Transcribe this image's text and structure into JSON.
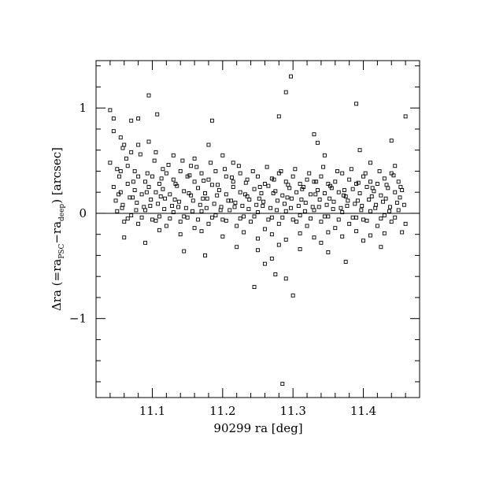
{
  "chart_data": {
    "type": "scatter",
    "title": "",
    "xlabel": "90299 ra [deg]",
    "ylabel_parts": {
      "lead": "Δra  (=ra",
      "sub1": "PSC",
      "mid": "−ra",
      "sub2": "deep",
      ") [arcsec]": ") [arcsec]"
    },
    "ylabel_tail": ")  [arcsec]",
    "xlim": [
      11.02,
      11.48
    ],
    "ylim": [
      -1.75,
      1.45
    ],
    "x_ticks": [
      11.1,
      11.2,
      11.3,
      11.4
    ],
    "x_tick_labels": [
      "11.1",
      "11.2",
      "11.3",
      "11.4"
    ],
    "y_ticks": [
      -1,
      0,
      1
    ],
    "y_tick_labels": [
      "−1",
      "0",
      "1"
    ],
    "reference_line_y": 0,
    "marker": "open-square",
    "grid": false,
    "series_note_count": 600,
    "points": [
      [
        11.06,
        -0.23
      ],
      [
        11.095,
        1.12
      ],
      [
        11.107,
        0.94
      ],
      [
        11.04,
        0.98
      ],
      [
        11.045,
        0.9
      ],
      [
        11.07,
        0.88
      ],
      [
        11.08,
        0.9
      ],
      [
        11.185,
        0.88
      ],
      [
        11.28,
        0.92
      ],
      [
        11.29,
        1.15
      ],
      [
        11.297,
        1.3
      ],
      [
        11.39,
        1.04
      ],
      [
        11.46,
        0.92
      ],
      [
        11.045,
        0.78
      ],
      [
        11.055,
        0.72
      ],
      [
        11.06,
        0.65
      ],
      [
        11.058,
        0.62
      ],
      [
        11.08,
        0.65
      ],
      [
        11.07,
        0.58
      ],
      [
        11.095,
        0.68
      ],
      [
        11.105,
        0.58
      ],
      [
        11.13,
        0.55
      ],
      [
        11.16,
        0.52
      ],
      [
        11.18,
        0.65
      ],
      [
        11.2,
        0.55
      ],
      [
        11.215,
        0.48
      ],
      [
        11.33,
        0.75
      ],
      [
        11.335,
        0.67
      ],
      [
        11.345,
        0.55
      ],
      [
        11.395,
        0.6
      ],
      [
        11.41,
        0.48
      ],
      [
        11.44,
        0.69
      ],
      [
        11.445,
        0.45
      ],
      [
        11.285,
        -1.62
      ],
      [
        11.245,
        -0.7
      ],
      [
        11.3,
        -0.78
      ],
      [
        11.29,
        -0.62
      ],
      [
        11.26,
        -0.48
      ],
      [
        11.275,
        -0.58
      ],
      [
        11.35,
        -0.37
      ],
      [
        11.375,
        -0.46
      ],
      [
        11.27,
        -0.43
      ],
      [
        11.09,
        -0.28
      ],
      [
        11.145,
        -0.36
      ],
      [
        11.175,
        -0.4
      ],
      [
        11.04,
        0.48
      ],
      [
        11.05,
        0.42
      ],
      [
        11.055,
        0.4
      ],
      [
        11.065,
        0.45
      ],
      [
        11.075,
        0.4
      ],
      [
        11.08,
        0.35
      ],
      [
        11.09,
        0.3
      ],
      [
        11.1,
        0.35
      ],
      [
        11.11,
        0.28
      ],
      [
        11.115,
        0.42
      ],
      [
        11.12,
        0.38
      ],
      [
        11.13,
        0.32
      ],
      [
        11.14,
        0.4
      ],
      [
        11.15,
        0.35
      ],
      [
        11.155,
        0.45
      ],
      [
        11.16,
        0.3
      ],
      [
        11.17,
        0.38
      ],
      [
        11.18,
        0.32
      ],
      [
        11.19,
        0.4
      ],
      [
        11.205,
        0.35
      ],
      [
        11.215,
        0.3
      ],
      [
        11.225,
        0.38
      ],
      [
        11.235,
        0.32
      ],
      [
        11.25,
        0.35
      ],
      [
        11.26,
        0.28
      ],
      [
        11.27,
        0.33
      ],
      [
        11.28,
        0.38
      ],
      [
        11.29,
        0.3
      ],
      [
        11.3,
        0.35
      ],
      [
        11.31,
        0.28
      ],
      [
        11.32,
        0.32
      ],
      [
        11.33,
        0.3
      ],
      [
        11.34,
        0.35
      ],
      [
        11.35,
        0.28
      ],
      [
        11.36,
        0.3
      ],
      [
        11.37,
        0.38
      ],
      [
        11.38,
        0.32
      ],
      [
        11.39,
        0.28
      ],
      [
        11.4,
        0.35
      ],
      [
        11.41,
        0.3
      ],
      [
        11.42,
        0.28
      ],
      [
        11.43,
        0.33
      ],
      [
        11.44,
        0.38
      ],
      [
        11.45,
        0.3
      ],
      [
        11.045,
        0.25
      ],
      [
        11.055,
        0.2
      ],
      [
        11.065,
        0.28
      ],
      [
        11.075,
        0.22
      ],
      [
        11.085,
        0.18
      ],
      [
        11.095,
        0.25
      ],
      [
        11.105,
        0.2
      ],
      [
        11.115,
        0.23
      ],
      [
        11.125,
        0.18
      ],
      [
        11.135,
        0.26
      ],
      [
        11.145,
        0.21
      ],
      [
        11.155,
        0.17
      ],
      [
        11.165,
        0.24
      ],
      [
        11.175,
        0.19
      ],
      [
        11.185,
        0.27
      ],
      [
        11.195,
        0.22
      ],
      [
        11.205,
        0.18
      ],
      [
        11.215,
        0.25
      ],
      [
        11.225,
        0.2
      ],
      [
        11.235,
        0.16
      ],
      [
        11.245,
        0.23
      ],
      [
        11.255,
        0.19
      ],
      [
        11.265,
        0.26
      ],
      [
        11.275,
        0.21
      ],
      [
        11.285,
        0.17
      ],
      [
        11.295,
        0.24
      ],
      [
        11.305,
        0.2
      ],
      [
        11.315,
        0.25
      ],
      [
        11.325,
        0.18
      ],
      [
        11.335,
        0.22
      ],
      [
        11.345,
        0.19
      ],
      [
        11.355,
        0.24
      ],
      [
        11.365,
        0.2
      ],
      [
        11.375,
        0.16
      ],
      [
        11.385,
        0.23
      ],
      [
        11.395,
        0.19
      ],
      [
        11.405,
        0.25
      ],
      [
        11.415,
        0.21
      ],
      [
        11.425,
        0.17
      ],
      [
        11.435,
        0.24
      ],
      [
        11.445,
        0.2
      ],
      [
        11.455,
        0.22
      ],
      [
        11.048,
        0.12
      ],
      [
        11.058,
        0.08
      ],
      [
        11.068,
        0.15
      ],
      [
        11.078,
        0.1
      ],
      [
        11.088,
        0.06
      ],
      [
        11.098,
        0.13
      ],
      [
        11.108,
        0.09
      ],
      [
        11.118,
        0.14
      ],
      [
        11.128,
        0.07
      ],
      [
        11.138,
        0.11
      ],
      [
        11.148,
        0.05
      ],
      [
        11.158,
        0.12
      ],
      [
        11.168,
        0.08
      ],
      [
        11.178,
        0.14
      ],
      [
        11.188,
        0.09
      ],
      [
        11.198,
        0.06
      ],
      [
        11.208,
        0.12
      ],
      [
        11.218,
        0.1
      ],
      [
        11.228,
        0.07
      ],
      [
        11.238,
        0.13
      ],
      [
        11.248,
        0.08
      ],
      [
        11.258,
        0.11
      ],
      [
        11.268,
        0.05
      ],
      [
        11.278,
        0.12
      ],
      [
        11.288,
        0.09
      ],
      [
        11.298,
        0.14
      ],
      [
        11.308,
        0.07
      ],
      [
        11.318,
        0.1
      ],
      [
        11.328,
        0.06
      ],
      [
        11.338,
        0.13
      ],
      [
        11.348,
        0.08
      ],
      [
        11.358,
        0.11
      ],
      [
        11.368,
        0.05
      ],
      [
        11.378,
        0.12
      ],
      [
        11.388,
        0.09
      ],
      [
        11.398,
        0.07
      ],
      [
        11.408,
        0.13
      ],
      [
        11.418,
        0.08
      ],
      [
        11.428,
        0.11
      ],
      [
        11.438,
        0.06
      ],
      [
        11.448,
        0.1
      ],
      [
        11.458,
        0.08
      ],
      [
        11.05,
        0.02
      ],
      [
        11.07,
        -0.02
      ],
      [
        11.09,
        0.03
      ],
      [
        11.11,
        -0.03
      ],
      [
        11.13,
        0.01
      ],
      [
        11.15,
        -0.04
      ],
      [
        11.17,
        0.02
      ],
      [
        11.19,
        -0.02
      ],
      [
        11.21,
        0.03
      ],
      [
        11.23,
        -0.03
      ],
      [
        11.25,
        0.01
      ],
      [
        11.27,
        -0.04
      ],
      [
        11.29,
        0.02
      ],
      [
        11.31,
        -0.02
      ],
      [
        11.33,
        0.03
      ],
      [
        11.35,
        -0.03
      ],
      [
        11.37,
        0.01
      ],
      [
        11.39,
        -0.04
      ],
      [
        11.41,
        0.02
      ],
      [
        11.43,
        -0.02
      ],
      [
        11.45,
        0.03
      ],
      [
        11.06,
        -0.08
      ],
      [
        11.08,
        -0.1
      ],
      [
        11.1,
        -0.06
      ],
      [
        11.12,
        -0.12
      ],
      [
        11.14,
        -0.08
      ],
      [
        11.16,
        -0.14
      ],
      [
        11.18,
        -0.1
      ],
      [
        11.2,
        -0.06
      ],
      [
        11.22,
        -0.12
      ],
      [
        11.24,
        -0.08
      ],
      [
        11.26,
        -0.15
      ],
      [
        11.28,
        -0.1
      ],
      [
        11.3,
        -0.06
      ],
      [
        11.32,
        -0.12
      ],
      [
        11.34,
        -0.08
      ],
      [
        11.36,
        -0.14
      ],
      [
        11.38,
        -0.1
      ],
      [
        11.4,
        -0.06
      ],
      [
        11.42,
        -0.12
      ],
      [
        11.44,
        -0.08
      ],
      [
        11.46,
        -0.1
      ],
      [
        11.11,
        -0.16
      ],
      [
        11.14,
        -0.2
      ],
      [
        11.17,
        -0.17
      ],
      [
        11.2,
        -0.22
      ],
      [
        11.23,
        -0.18
      ],
      [
        11.25,
        -0.24
      ],
      [
        11.27,
        -0.2
      ],
      [
        11.29,
        -0.25
      ],
      [
        11.31,
        -0.19
      ],
      [
        11.33,
        -0.23
      ],
      [
        11.35,
        -0.18
      ],
      [
        11.37,
        -0.22
      ],
      [
        11.39,
        -0.17
      ],
      [
        11.41,
        -0.21
      ],
      [
        11.43,
        -0.19
      ],
      [
        11.455,
        -0.18
      ],
      [
        11.22,
        -0.32
      ],
      [
        11.25,
        -0.35
      ],
      [
        11.28,
        -0.3
      ],
      [
        11.31,
        -0.34
      ],
      [
        11.34,
        -0.28
      ],
      [
        11.4,
        -0.26
      ],
      [
        11.425,
        -0.32
      ],
      [
        11.063,
        0.52
      ],
      [
        11.083,
        0.56
      ],
      [
        11.103,
        0.5
      ],
      [
        11.123,
        0.46
      ],
      [
        11.143,
        0.5
      ],
      [
        11.163,
        0.44
      ],
      [
        11.183,
        0.48
      ],
      [
        11.203,
        0.42
      ],
      [
        11.223,
        0.45
      ],
      [
        11.243,
        0.4
      ],
      [
        11.263,
        0.44
      ],
      [
        11.283,
        0.4
      ],
      [
        11.303,
        0.42
      ],
      [
        11.323,
        0.38
      ],
      [
        11.343,
        0.44
      ],
      [
        11.363,
        0.4
      ],
      [
        11.383,
        0.42
      ],
      [
        11.403,
        0.38
      ],
      [
        11.423,
        0.4
      ],
      [
        11.443,
        0.36
      ],
      [
        11.053,
        0.35
      ],
      [
        11.073,
        0.3
      ],
      [
        11.093,
        0.38
      ],
      [
        11.113,
        0.33
      ],
      [
        11.133,
        0.28
      ],
      [
        11.153,
        0.36
      ],
      [
        11.173,
        0.31
      ],
      [
        11.193,
        0.27
      ],
      [
        11.213,
        0.34
      ],
      [
        11.233,
        0.29
      ],
      [
        11.253,
        0.25
      ],
      [
        11.273,
        0.32
      ],
      [
        11.293,
        0.27
      ],
      [
        11.313,
        0.23
      ],
      [
        11.333,
        0.3
      ],
      [
        11.353,
        0.26
      ],
      [
        11.373,
        0.22
      ],
      [
        11.393,
        0.29
      ],
      [
        11.413,
        0.24
      ],
      [
        11.433,
        0.27
      ],
      [
        11.453,
        0.25
      ],
      [
        11.052,
        0.18
      ],
      [
        11.072,
        0.15
      ],
      [
        11.092,
        0.2
      ],
      [
        11.112,
        0.16
      ],
      [
        11.132,
        0.13
      ],
      [
        11.152,
        0.19
      ],
      [
        11.172,
        0.14
      ],
      [
        11.192,
        0.17
      ],
      [
        11.212,
        0.12
      ],
      [
        11.232,
        0.18
      ],
      [
        11.252,
        0.14
      ],
      [
        11.272,
        0.19
      ],
      [
        11.292,
        0.15
      ],
      [
        11.312,
        0.13
      ],
      [
        11.332,
        0.18
      ],
      [
        11.352,
        0.14
      ],
      [
        11.372,
        0.17
      ],
      [
        11.392,
        0.12
      ],
      [
        11.412,
        0.16
      ],
      [
        11.432,
        0.14
      ],
      [
        11.452,
        0.15
      ],
      [
        11.057,
        0.05
      ],
      [
        11.077,
        0.03
      ],
      [
        11.097,
        0.07
      ],
      [
        11.117,
        0.04
      ],
      [
        11.137,
        0.06
      ],
      [
        11.157,
        0.02
      ],
      [
        11.177,
        0.05
      ],
      [
        11.197,
        0.03
      ],
      [
        11.217,
        0.06
      ],
      [
        11.237,
        0.04
      ],
      [
        11.257,
        0.07
      ],
      [
        11.277,
        0.03
      ],
      [
        11.297,
        0.05
      ],
      [
        11.317,
        0.02
      ],
      [
        11.337,
        0.06
      ],
      [
        11.357,
        0.04
      ],
      [
        11.377,
        0.07
      ],
      [
        11.397,
        0.03
      ],
      [
        11.417,
        0.05
      ],
      [
        11.437,
        0.02
      ],
      [
        11.065,
        -0.05
      ],
      [
        11.085,
        -0.04
      ],
      [
        11.105,
        -0.07
      ],
      [
        11.125,
        -0.05
      ],
      [
        11.145,
        -0.03
      ],
      [
        11.165,
        -0.06
      ],
      [
        11.185,
        -0.04
      ],
      [
        11.205,
        -0.07
      ],
      [
        11.225,
        -0.05
      ],
      [
        11.245,
        -0.03
      ],
      [
        11.265,
        -0.06
      ],
      [
        11.285,
        -0.04
      ],
      [
        11.305,
        -0.08
      ],
      [
        11.325,
        -0.05
      ],
      [
        11.345,
        -0.03
      ],
      [
        11.365,
        -0.06
      ],
      [
        11.385,
        -0.04
      ],
      [
        11.405,
        -0.07
      ],
      [
        11.425,
        -0.05
      ],
      [
        11.445,
        -0.04
      ]
    ]
  }
}
